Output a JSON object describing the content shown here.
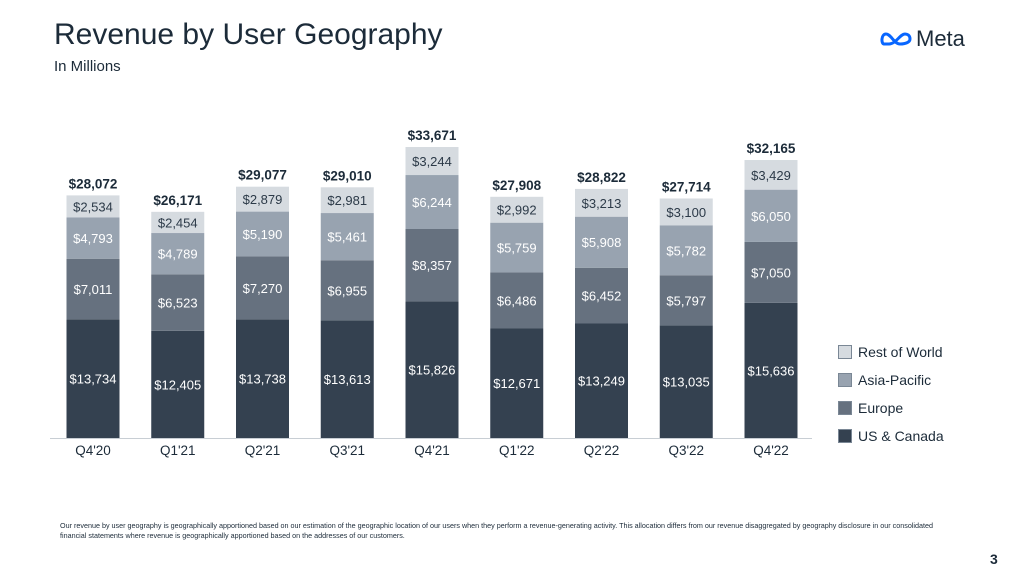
{
  "header": {
    "title": "Revenue by User Geography",
    "subtitle": "In Millions",
    "logo_text": "Meta"
  },
  "footnote": "Our revenue by user geography is geographically apportioned based on our estimation of the geographic location of our users when they perform a revenue-generating activity. This allocation differs from our revenue disaggregated by geography disclosure in our consolidated financial statements where revenue is geographically apportioned based on the addresses of our customers.",
  "page_number": "3",
  "colors": {
    "us_canada": "#344150",
    "europe": "#66717f",
    "asia_pacific": "#98a3b0",
    "rest_of_world": "#d6dbe0",
    "axis": "#c8ced4",
    "text_dark": "#1c2b39",
    "logo_blue": "#0866ff"
  },
  "chart_data": {
    "type": "bar",
    "stacked": true,
    "categories": [
      "Q4'20",
      "Q1'21",
      "Q2'21",
      "Q3'21",
      "Q4'21",
      "Q1'22",
      "Q2'22",
      "Q3'22",
      "Q4'22"
    ],
    "series": [
      {
        "name": "US & Canada",
        "values": [
          13734,
          12405,
          13738,
          13613,
          15826,
          12671,
          13249,
          13035,
          15636
        ],
        "labels": [
          "$13,734",
          "$12,405",
          "$13,738",
          "$13,613",
          "$15,826",
          "$12,671",
          "$13,249",
          "$13,035",
          "$15,636"
        ]
      },
      {
        "name": "Europe",
        "values": [
          7011,
          6523,
          7270,
          6955,
          8357,
          6486,
          6452,
          5797,
          7050
        ],
        "labels": [
          "$7,011",
          "$6,523",
          "$7,270",
          "$6,955",
          "$8,357",
          "$6,486",
          "$6,452",
          "$5,797",
          "$7,050"
        ]
      },
      {
        "name": "Asia-Pacific",
        "values": [
          4793,
          4789,
          5190,
          5461,
          6244,
          5759,
          5908,
          5782,
          6050
        ],
        "labels": [
          "$4,793",
          "$4,789",
          "$5,190",
          "$5,461",
          "$6,244",
          "$5,759",
          "$5,908",
          "$5,782",
          "$6,050"
        ]
      },
      {
        "name": "Rest of World",
        "values": [
          2534,
          2454,
          2879,
          2981,
          3244,
          2992,
          3213,
          3100,
          3429
        ],
        "labels": [
          "$2,534",
          "$2,454",
          "$2,879",
          "$2,981",
          "$3,244",
          "$2,992",
          "$3,213",
          "$3,100",
          "$3,429"
        ]
      }
    ],
    "totals": [
      28072,
      26171,
      29077,
      29010,
      33671,
      27908,
      28822,
      27714,
      32165
    ],
    "total_labels": [
      "$28,072",
      "$26,171",
      "$29,077",
      "$29,010",
      "$33,671",
      "$27,908",
      "$28,822",
      "$27,714",
      "$32,165"
    ],
    "ylim": [
      0,
      33671
    ],
    "legend_position": "right",
    "grid": false,
    "xlabel": "",
    "ylabel": ""
  }
}
